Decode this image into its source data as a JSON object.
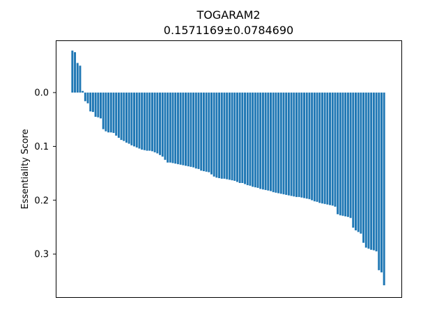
{
  "chart_data": {
    "type": "bar",
    "title": "TOGARAM2",
    "subtitle": "0.1571169±0.0784690",
    "xlabel": "",
    "ylabel": "Essentiality Score",
    "ylim": [
      -0.097,
      0.38
    ],
    "y_inverted": true,
    "yticks": [
      0.0,
      0.1,
      0.2,
      0.3
    ],
    "ytick_labels": [
      "0.0",
      "0.1",
      "0.2",
      "0.3"
    ],
    "grid": false,
    "color": "#1f77b4",
    "values": [
      -0.078,
      -0.075,
      -0.055,
      -0.05,
      -0.003,
      0.016,
      0.02,
      0.035,
      0.036,
      0.045,
      0.046,
      0.048,
      0.068,
      0.072,
      0.074,
      0.074,
      0.075,
      0.08,
      0.084,
      0.088,
      0.09,
      0.093,
      0.095,
      0.098,
      0.1,
      0.102,
      0.104,
      0.106,
      0.107,
      0.108,
      0.108,
      0.109,
      0.111,
      0.113,
      0.116,
      0.119,
      0.125,
      0.13,
      0.13,
      0.131,
      0.132,
      0.133,
      0.134,
      0.135,
      0.136,
      0.137,
      0.138,
      0.139,
      0.141,
      0.142,
      0.145,
      0.146,
      0.147,
      0.148,
      0.152,
      0.156,
      0.158,
      0.159,
      0.16,
      0.16,
      0.161,
      0.162,
      0.163,
      0.164,
      0.166,
      0.168,
      0.168,
      0.17,
      0.172,
      0.173,
      0.175,
      0.176,
      0.177,
      0.179,
      0.18,
      0.181,
      0.182,
      0.183,
      0.185,
      0.186,
      0.187,
      0.188,
      0.189,
      0.19,
      0.191,
      0.192,
      0.193,
      0.194,
      0.194,
      0.195,
      0.196,
      0.197,
      0.198,
      0.2,
      0.202,
      0.203,
      0.205,
      0.206,
      0.207,
      0.208,
      0.209,
      0.21,
      0.212,
      0.226,
      0.228,
      0.229,
      0.23,
      0.231,
      0.233,
      0.251,
      0.256,
      0.259,
      0.262,
      0.279,
      0.288,
      0.29,
      0.292,
      0.293,
      0.295,
      0.33,
      0.334,
      0.358
    ]
  }
}
